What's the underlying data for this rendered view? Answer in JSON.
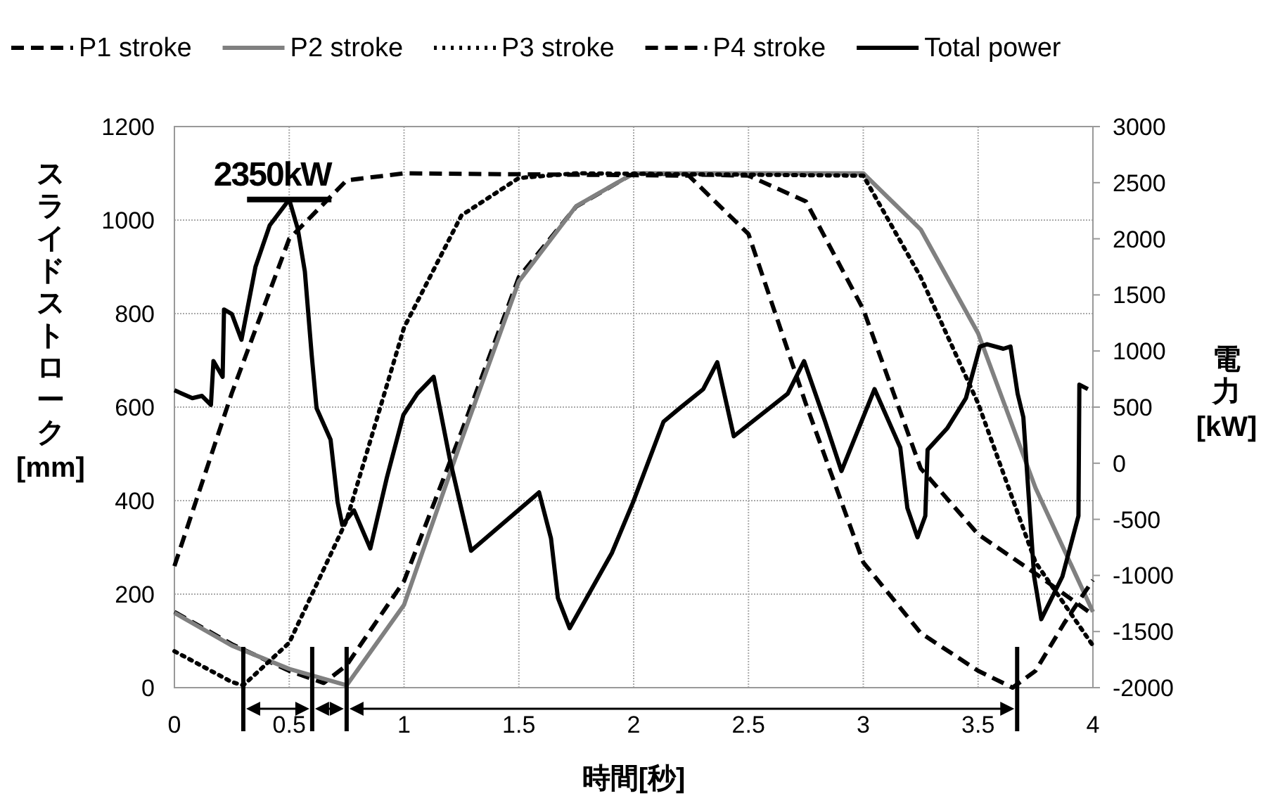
{
  "chart_data": {
    "type": "line",
    "xlabel": "時間[秒]",
    "ylabel": "スライドストローク[mm]",
    "y2label": "電力[kW]",
    "xlim": [
      0,
      4
    ],
    "xticks": [
      0,
      0.5,
      1,
      1.5,
      2,
      2.5,
      3,
      3.5,
      4
    ],
    "ylim": [
      0,
      1200
    ],
    "yticks": [
      0,
      200,
      400,
      600,
      800,
      1000,
      1200
    ],
    "y2lim": [
      -2000,
      3000
    ],
    "y2ticks": [
      -2000,
      -1500,
      -1000,
      -500,
      0,
      500,
      1000,
      1500,
      2000,
      2500,
      3000
    ],
    "grid": true,
    "legend": "top",
    "marker": "none",
    "annotations": [
      "2350kW"
    ],
    "series": [
      {
        "name": "P1 stroke",
        "color": "#000000",
        "line_style": "dashed",
        "x": [
          0,
          0.25,
          0.5,
          0.65,
          0.75,
          1.0,
          1.25,
          1.5,
          1.75,
          2.0,
          2.5,
          2.75,
          3.0,
          3.25,
          3.5,
          3.75,
          4.0
        ],
        "values": [
          162,
          93,
          36,
          10,
          48,
          228,
          547,
          878,
          1029,
          1100,
          1095,
          1040,
          809,
          469,
          328,
          244,
          156
        ]
      },
      {
        "name": "P2 stroke",
        "color": "#808080",
        "line_style": "solid",
        "x": [
          0,
          0.25,
          0.5,
          0.75,
          1.0,
          1.25,
          1.5,
          1.75,
          2.0,
          3.0,
          3.25,
          3.5,
          3.75,
          4.0
        ],
        "values": [
          160,
          90,
          40,
          5,
          177,
          529,
          869,
          1030,
          1100,
          1100,
          980,
          758,
          427,
          162
        ]
      },
      {
        "name": "P3 stroke",
        "color": "#000000",
        "line_style": "dotted",
        "x": [
          0,
          0.25,
          0.3,
          0.5,
          0.75,
          1.0,
          1.25,
          1.5,
          1.75,
          3.0,
          3.25,
          3.5,
          3.75,
          4.0
        ],
        "values": [
          78,
          12,
          5,
          96,
          358,
          770,
          1010,
          1090,
          1100,
          1095,
          878,
          608,
          268,
          90
        ]
      },
      {
        "name": "P4 stroke",
        "color": "#000000",
        "line_style": "dashed",
        "x": [
          0,
          0.25,
          0.5,
          0.75,
          1.0,
          2.24,
          2.5,
          2.75,
          3.0,
          3.25,
          3.5,
          3.65,
          3.75,
          3.875,
          4.0
        ],
        "values": [
          260,
          630,
          960,
          1085,
          1100,
          1095,
          970,
          607,
          268,
          117,
          36,
          0,
          36,
          138,
          230
        ]
      },
      {
        "name": "Total power",
        "color": "#000000",
        "line_style": "solid",
        "axis": "y2",
        "x": [
          0,
          0.078,
          0.12,
          0.159,
          0.17,
          0.21,
          0.216,
          0.25,
          0.292,
          0.353,
          0.415,
          0.5,
          0.537,
          0.568,
          0.598,
          0.619,
          0.68,
          0.711,
          0.731,
          0.782,
          0.853,
          0.925,
          0.997,
          1.058,
          1.129,
          1.2,
          1.292,
          1.588,
          1.64,
          1.67,
          1.721,
          1.905,
          1.997,
          2.13,
          2.2,
          2.303,
          2.364,
          2.436,
          2.671,
          2.742,
          2.834,
          2.905,
          3.049,
          3.161,
          3.192,
          3.236,
          3.27,
          3.28,
          3.365,
          3.447,
          3.508,
          3.539,
          3.61,
          3.641,
          3.672,
          3.697,
          3.744,
          3.775,
          3.867,
          3.937,
          3.941,
          3.978
        ],
        "values": [
          650,
          580,
          600,
          520,
          910,
          770,
          1370,
          1330,
          1100,
          1750,
          2120,
          2350,
          2090,
          1710,
          960,
          490,
          210,
          -350,
          -550,
          -420,
          -760,
          -130,
          430,
          620,
          770,
          30,
          -780,
          -260,
          -670,
          -1200,
          -1470,
          -800,
          -350,
          370,
          490,
          660,
          900,
          240,
          620,
          910,
          370,
          -70,
          660,
          140,
          -400,
          -660,
          -470,
          120,
          310,
          580,
          1040,
          1060,
          1020,
          1040,
          620,
          410,
          -1010,
          -1390,
          -1010,
          -470,
          700,
          660
        ]
      }
    ]
  }
}
